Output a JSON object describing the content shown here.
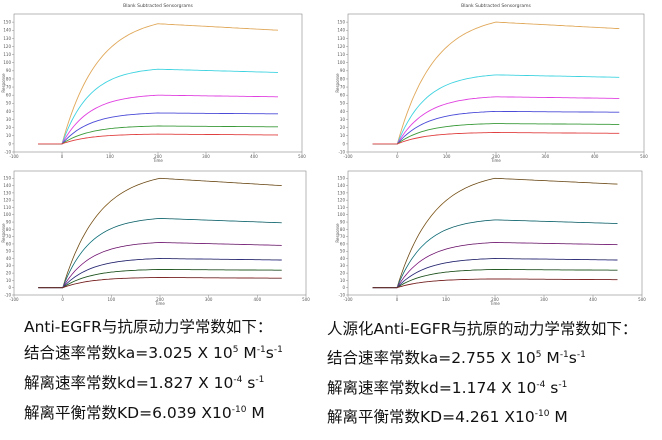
{
  "chart_data": [
    {
      "type": "line",
      "title": "Blank Subtracted Sensorgrams",
      "xlabel": "Time",
      "ylabel": "Response",
      "xlim": [
        -100,
        500
      ],
      "ylim": [
        -10,
        160
      ],
      "x_ticks": [
        "-100",
        "0",
        "100",
        "200",
        "300",
        "400",
        "500"
      ],
      "y_ticks": [
        "-10",
        "0",
        "10",
        "20",
        "30",
        "40",
        "50",
        "60",
        "70",
        "80",
        "90",
        "100",
        "110",
        "120",
        "130",
        "140",
        "150"
      ],
      "curves": [
        {
          "color": "#e0a85a",
          "plateau": 148,
          "end": 140
        },
        {
          "color": "#3fd3e0",
          "plateau": 92,
          "end": 88
        },
        {
          "color": "#e040e0",
          "plateau": 60,
          "end": 58
        },
        {
          "color": "#4b4bd8",
          "plateau": 38,
          "end": 37
        },
        {
          "color": "#3a9a3a",
          "plateau": 22,
          "end": 21
        },
        {
          "color": "#e04040",
          "plateau": 12,
          "end": 11
        }
      ]
    },
    {
      "type": "line",
      "title": "Blank Subtracted Sensorgrams",
      "xlabel": "Time",
      "ylabel": "Response",
      "xlim": [
        -100,
        500
      ],
      "ylim": [
        -10,
        160
      ],
      "x_ticks": [
        "-100",
        "0",
        "100",
        "200",
        "300",
        "400",
        "500"
      ],
      "y_ticks": [
        "-10",
        "0",
        "10",
        "20",
        "30",
        "40",
        "50",
        "60",
        "70",
        "80",
        "90",
        "100",
        "110",
        "120",
        "130",
        "140",
        "150"
      ],
      "curves": [
        {
          "color": "#e0a85a",
          "plateau": 150,
          "end": 142
        },
        {
          "color": "#3fd3e0",
          "plateau": 85,
          "end": 82
        },
        {
          "color": "#e040e0",
          "plateau": 58,
          "end": 56
        },
        {
          "color": "#4b4bd8",
          "plateau": 40,
          "end": 39
        },
        {
          "color": "#3a9a3a",
          "plateau": 25,
          "end": 24
        },
        {
          "color": "#e04040",
          "plateau": 14,
          "end": 13
        }
      ]
    },
    {
      "type": "line",
      "title": "",
      "xlabel": "Time",
      "ylabel": "Response",
      "xlim": [
        -100,
        500
      ],
      "ylim": [
        -10,
        160
      ],
      "x_ticks": [
        "-100",
        "0",
        "100",
        "200",
        "300",
        "400",
        "500"
      ],
      "y_ticks": [
        "-10",
        "0",
        "10",
        "20",
        "30",
        "40",
        "50",
        "60",
        "70",
        "80",
        "90",
        "100",
        "110",
        "120",
        "130",
        "140",
        "150"
      ],
      "curves": [
        {
          "color": "#c8913c",
          "plateau": 150,
          "end": 140
        },
        {
          "color": "#2ab6c4",
          "plateau": 95,
          "end": 89
        },
        {
          "color": "#c83ac8",
          "plateau": 62,
          "end": 58
        },
        {
          "color": "#3f3fbf",
          "plateau": 40,
          "end": 38
        },
        {
          "color": "#2f8a2f",
          "plateau": 25,
          "end": 24
        },
        {
          "color": "#c83030",
          "plateau": 14,
          "end": 13
        }
      ]
    },
    {
      "type": "line",
      "title": "",
      "xlabel": "Time",
      "ylabel": "Response",
      "xlim": [
        -100,
        500
      ],
      "ylim": [
        -10,
        160
      ],
      "x_ticks": [
        "-100",
        "0",
        "100",
        "200",
        "300",
        "400",
        "500"
      ],
      "y_ticks": [
        "-10",
        "0",
        "10",
        "20",
        "30",
        "40",
        "50",
        "60",
        "70",
        "80",
        "90",
        "100",
        "110",
        "120",
        "130",
        "140",
        "150"
      ],
      "curves": [
        {
          "color": "#c8913c",
          "plateau": 150,
          "end": 142
        },
        {
          "color": "#2ab6c4",
          "plateau": 93,
          "end": 88
        },
        {
          "color": "#c83ac8",
          "plateau": 62,
          "end": 59
        },
        {
          "color": "#3f3fbf",
          "plateau": 40,
          "end": 38
        },
        {
          "color": "#2f8a2f",
          "plateau": 25,
          "end": 24
        },
        {
          "color": "#c83030",
          "plateau": 12,
          "end": 11
        }
      ]
    }
  ],
  "left_text": {
    "heading": "Anti-EGFR与抗原动力学常数如下：",
    "ka_prefix": "结合速率常数ka=3.025 X 10",
    "ka_exp": "5",
    "ka_unit1": " M",
    "ka_unit1_exp": "-1",
    "ka_unit2": "s",
    "ka_unit2_exp": "-1",
    "kd_prefix": "解离速率常数kd=1.827 X 10",
    "kd_exp": "-4",
    "kd_unit": " s",
    "kd_unit_exp": "-1",
    "KD_prefix": "解离平衡常数KD=6.039 X10",
    "KD_exp": "-10",
    "KD_unit": " M"
  },
  "right_text": {
    "heading": "人源化Anti-EGFR与抗原的动力学常数如下：",
    "ka_prefix": "结合速率常数ka=2.755 X 10",
    "ka_exp": "5",
    "ka_unit1": " M",
    "ka_unit1_exp": "-1",
    "ka_unit2": "s",
    "ka_unit2_exp": "-1",
    "kd_prefix": "解离速率常数kd=1.174 X 10",
    "kd_exp": "-4",
    "kd_unit": " s",
    "kd_unit_exp": "-1",
    "KD_prefix": "解离平衡常数KD=4.261 X10",
    "KD_exp": "-10",
    "KD_unit": " M"
  }
}
